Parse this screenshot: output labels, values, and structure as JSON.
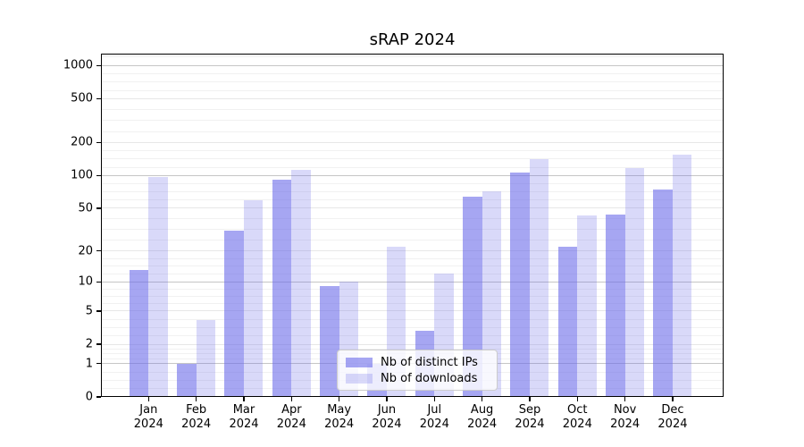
{
  "window": {
    "background": "#ffffff"
  },
  "chart_data": {
    "type": "bar",
    "title": "sRAP 2024",
    "categories": [
      "Jan 2024",
      "Feb 2024",
      "Mar 2024",
      "Apr 2024",
      "May 2024",
      "Jun 2024",
      "Jul 2024",
      "Aug 2024",
      "Sep 2024",
      "Oct 2024",
      "Nov 2024",
      "Dec 2024"
    ],
    "series": [
      {
        "name": "Nb of distinct IPs",
        "color": "rgba(107,107,233,0.6)",
        "values": [
          13,
          1,
          31,
          91,
          9,
          1,
          3,
          64,
          106,
          22,
          44,
          74
        ]
      },
      {
        "name": "Nb of downloads",
        "color": "rgba(107,107,233,0.26)",
        "values": [
          97,
          4,
          59,
          112,
          10,
          22,
          12,
          71,
          140,
          43,
          117,
          155
        ]
      }
    ],
    "xlabel": "",
    "ylabel": "",
    "yscale": "log1p",
    "yticks": [
      0,
      1,
      2,
      5,
      10,
      20,
      50,
      100,
      200,
      500,
      1000
    ],
    "ylim": [
      0,
      1280
    ],
    "grid": {
      "orientation": "horizontal",
      "major_color": "#c6c6c6",
      "midtick_color": "#e7e7e7",
      "minor_color": "#f1f1f1"
    },
    "axis_color": "#000000",
    "legend": {
      "position": "inside-bottom-center"
    }
  }
}
